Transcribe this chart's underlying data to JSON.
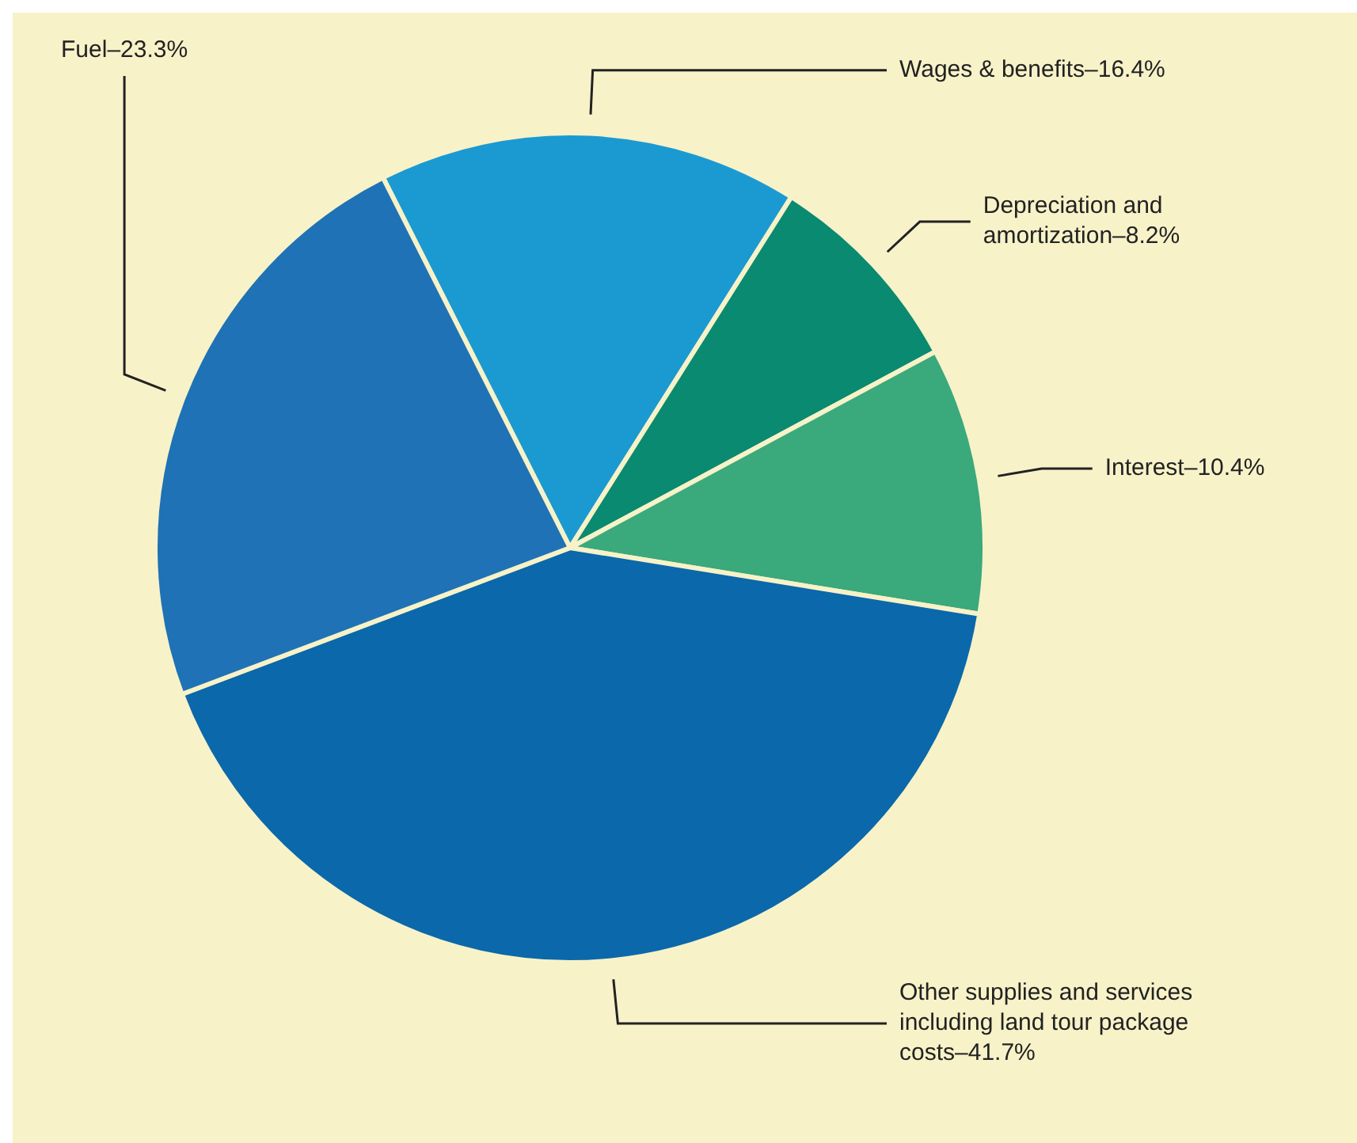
{
  "chart_data": {
    "type": "pie",
    "categories": [
      "Wages & benefits",
      "Depreciation and amortization",
      "Interest",
      "Other supplies and services including land tour package costs",
      "Fuel"
    ],
    "values": [
      16.4,
      8.2,
      10.4,
      41.7,
      23.3
    ],
    "value_labels": [
      "16.4%",
      "8.2%",
      "10.4%",
      "41.7%",
      "23.3%"
    ],
    "colors": [
      "#1b9ad2",
      "#0a8a70",
      "#3aa97c",
      "#0b68aa",
      "#1f72b5"
    ]
  }
}
